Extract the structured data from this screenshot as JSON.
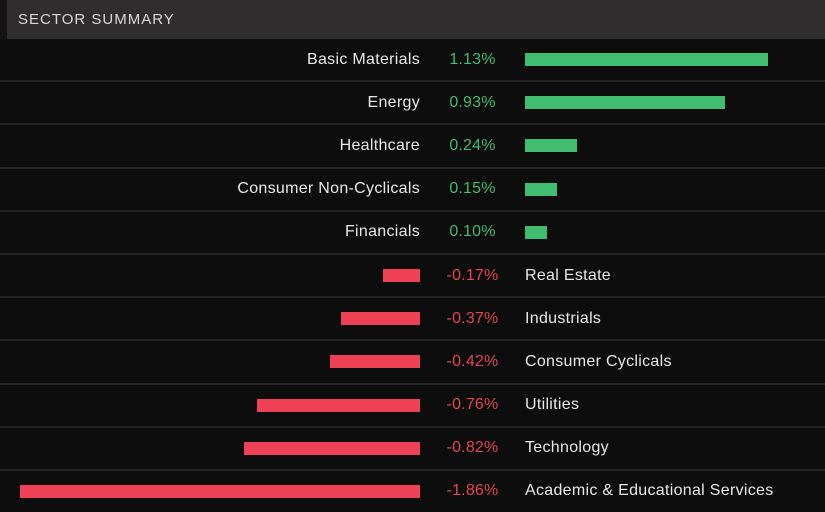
{
  "header": {
    "title": "SECTOR SUMMARY"
  },
  "colors": {
    "positive_bar": "#41bd71",
    "negative_bar": "#ee4156",
    "positive_text": "#41bd71",
    "negative_text": "#e5464f",
    "header_bg": "#2f2d2d",
    "header_text": "#d8d8d8",
    "row_bg": "#0d0d0d",
    "separator": "#242424",
    "label_text": "#e8e8e6"
  },
  "chart_data": {
    "type": "bar",
    "orientation": "horizontal-diverging",
    "title": "SECTOR SUMMARY",
    "unit": "%",
    "axis_shown": false,
    "categories": [
      "Basic Materials",
      "Energy",
      "Healthcare",
      "Consumer Non-Cyclicals",
      "Financials",
      "Real Estate",
      "Industrials",
      "Consumer Cyclicals",
      "Utilities",
      "Technology",
      "Academic & Educational Services"
    ],
    "values": [
      1.13,
      0.93,
      0.24,
      0.15,
      0.1,
      -0.17,
      -0.37,
      -0.42,
      -0.76,
      -0.82,
      -1.86
    ],
    "value_labels": [
      "1.13%",
      "0.93%",
      "0.24%",
      "0.15%",
      "0.10%",
      "-0.17%",
      "-0.37%",
      "-0.42%",
      "-0.76%",
      "-0.82%",
      "-1.86%"
    ],
    "positive_color": "#41bd71",
    "negative_color": "#ee4156"
  }
}
